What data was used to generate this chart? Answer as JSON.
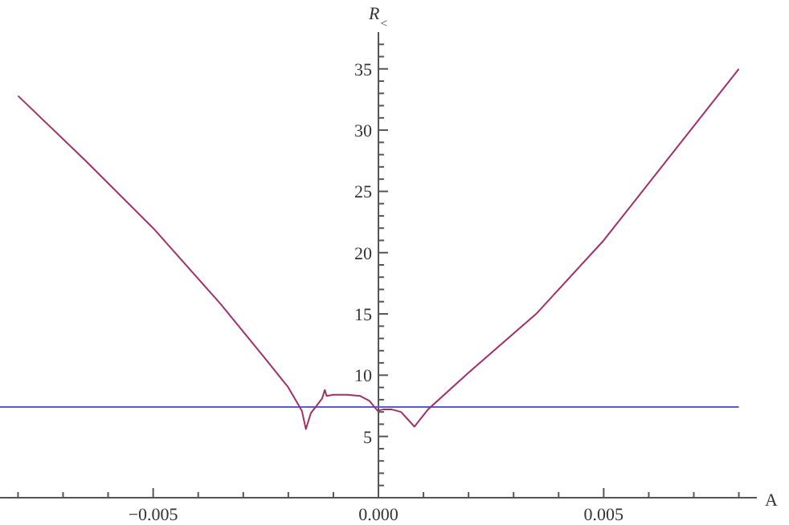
{
  "chart_data": {
    "type": "line",
    "xlabel": "A",
    "ylabel": "R$_{<}$",
    "xlim": [
      -0.0084,
      0.0084
    ],
    "ylim": [
      0,
      38
    ],
    "xticks": [
      {
        "value": -0.008,
        "label": null
      },
      {
        "value": -0.007,
        "label": null
      },
      {
        "value": -0.006,
        "label": null
      },
      {
        "value": -0.005,
        "label": "−0.005"
      },
      {
        "value": -0.004,
        "label": null
      },
      {
        "value": -0.003,
        "label": null
      },
      {
        "value": -0.002,
        "label": null
      },
      {
        "value": -0.001,
        "label": null
      },
      {
        "value": 0,
        "label": "0.000"
      },
      {
        "value": 0.001,
        "label": null
      },
      {
        "value": 0.002,
        "label": null
      },
      {
        "value": 0.003,
        "label": null
      },
      {
        "value": 0.004,
        "label": null
      },
      {
        "value": 0.005,
        "label": "0.005"
      },
      {
        "value": 0.006,
        "label": null
      },
      {
        "value": 0.007,
        "label": null
      },
      {
        "value": 0.008,
        "label": null
      }
    ],
    "yticks": [
      {
        "value": 1,
        "label": null
      },
      {
        "value": 2,
        "label": null
      },
      {
        "value": 3,
        "label": null
      },
      {
        "value": 4,
        "label": null
      },
      5,
      {
        "value": 6,
        "label": null
      },
      {
        "value": 7,
        "label": null
      },
      {
        "value": 8,
        "label": null
      },
      {
        "value": 9,
        "label": null
      },
      10,
      {
        "value": 11,
        "label": null
      },
      {
        "value": 12,
        "label": null
      },
      {
        "value": 13,
        "label": null
      },
      {
        "value": 14,
        "label": null
      },
      15,
      {
        "value": 16,
        "label": null
      },
      {
        "value": 17,
        "label": null
      },
      {
        "value": 18,
        "label": null
      },
      {
        "value": 19,
        "label": null
      },
      20,
      {
        "value": 21,
        "label": null
      },
      {
        "value": 22,
        "label": null
      },
      {
        "value": 23,
        "label": null
      },
      {
        "value": 24,
        "label": null
      },
      25,
      {
        "value": 26,
        "label": null
      },
      {
        "value": 27,
        "label": null
      },
      {
        "value": 28,
        "label": null
      },
      {
        "value": 29,
        "label": null
      },
      30,
      {
        "value": 31,
        "label": null
      },
      {
        "value": 32,
        "label": null
      },
      {
        "value": 33,
        "label": null
      },
      {
        "value": 34,
        "label": null
      },
      35,
      {
        "value": 36,
        "label": null
      },
      {
        "value": 37,
        "label": null
      }
    ],
    "grid": false,
    "marker": "none",
    "line_style": "solid",
    "series": [
      {
        "color": "#5a5ad2",
        "x": [
          -0.0084,
          0.008
        ],
        "values": [
          7.4,
          7.4
        ]
      },
      {
        "color": "#a0306a",
        "x": [
          -0.008,
          -0.0065,
          -0.005,
          -0.0035,
          -0.0025,
          -0.002,
          -0.0017,
          -0.00161,
          -0.0015,
          -0.00125,
          -0.00119,
          -0.00115,
          -0.001,
          -0.0007,
          -0.0004,
          -0.0002,
          -2e-05,
          0.0001,
          0.0003,
          0.0005,
          0.0006,
          0.0008,
          0.0011,
          0.002,
          0.0035,
          0.005,
          0.0065,
          0.008
        ],
        "values": [
          32.8,
          27.5,
          22.0,
          15.8,
          11.3,
          9.0,
          7.1,
          5.6,
          6.9,
          8.1,
          8.8,
          8.3,
          8.4,
          8.4,
          8.3,
          7.9,
          7.1,
          7.2,
          7.2,
          7.0,
          6.6,
          5.8,
          7.2,
          10.2,
          15.0,
          21.0,
          28.0,
          35.0
        ]
      }
    ]
  }
}
